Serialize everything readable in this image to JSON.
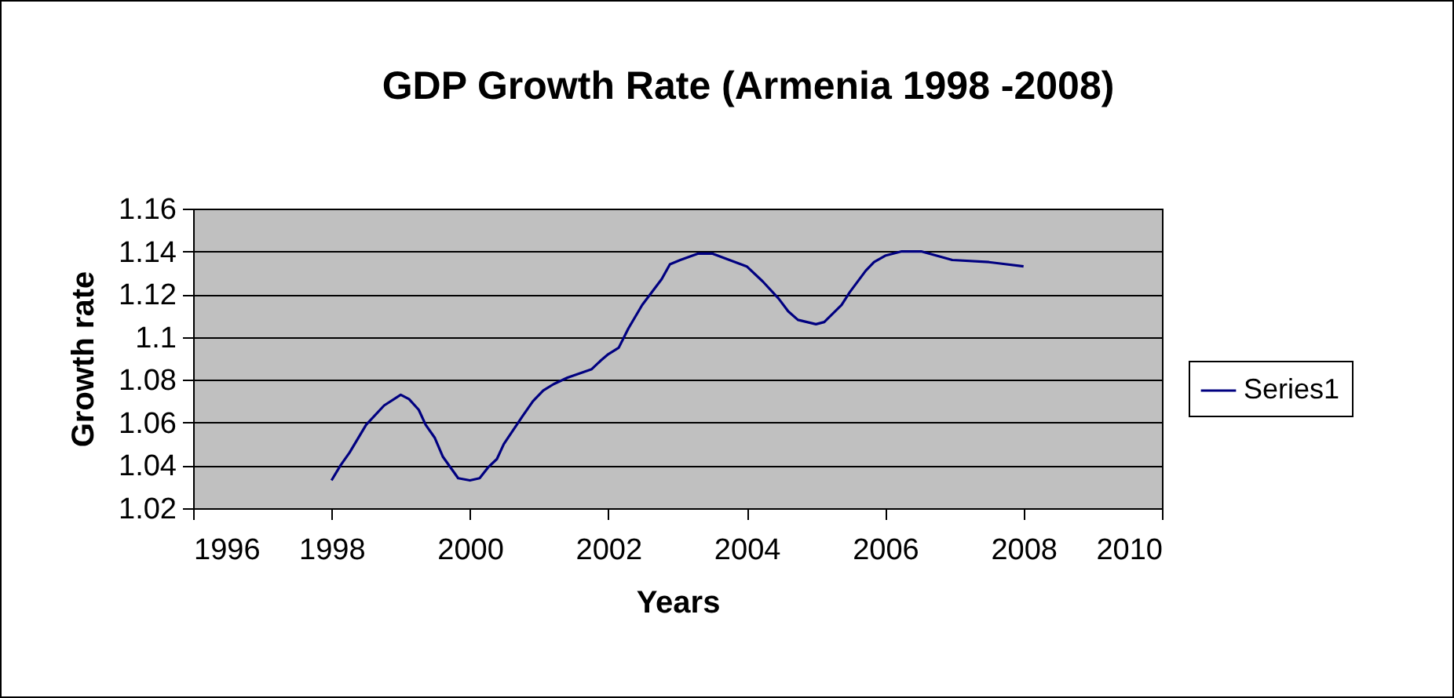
{
  "chart_data": {
    "type": "line",
    "title": "GDP Growth Rate (Armenia 1998 -2008)",
    "xlabel": "Years",
    "ylabel": "Growth rate",
    "xlim": [
      1996,
      2010
    ],
    "xticks": [
      1996,
      1998,
      2000,
      2002,
      2004,
      2006,
      2008,
      2010
    ],
    "ylim": [
      1.02,
      1.16
    ],
    "yticks": [
      1.02,
      1.04,
      1.06,
      1.08,
      1.1,
      1.12,
      1.14,
      1.16
    ],
    "grid": "y",
    "legend": "right",
    "marker": "none",
    "line_style": "solid",
    "series": [
      {
        "name": "Series1",
        "color": "#000080",
        "x": [
          1998,
          1998.13,
          1998.26,
          1998.5,
          1998.76,
          1999,
          1999.12,
          1999.26,
          1999.36,
          1999.49,
          1999.61,
          1999.83,
          2000,
          2000.14,
          2000.26,
          2000.39,
          2000.49,
          2000.76,
          2000.91,
          2001.06,
          2001.21,
          2001.41,
          2001.76,
          2001.89,
          2002,
          2002.15,
          2002.29,
          2002.49,
          2002.77,
          2002.89,
          2003.04,
          2003.3,
          2003.5,
          2003.75,
          2004,
          2004.23,
          2004.46,
          2004.6,
          2004.74,
          2005,
          2005.12,
          2005.37,
          2005.49,
          2005.72,
          2005.84,
          2006,
          2006.24,
          2006.52,
          2006.97,
          2007.5,
          2008
        ],
        "values": [
          1.033,
          1.04,
          1.046,
          1.059,
          1.068,
          1.073,
          1.071,
          1.066,
          1.059,
          1.053,
          1.044,
          1.034,
          1.033,
          1.034,
          1.039,
          1.043,
          1.05,
          1.063,
          1.07,
          1.075,
          1.078,
          1.081,
          1.085,
          1.089,
          1.092,
          1.095,
          1.104,
          1.115,
          1.127,
          1.134,
          1.136,
          1.139,
          1.139,
          1.136,
          1.133,
          1.126,
          1.118,
          1.112,
          1.108,
          1.106,
          1.107,
          1.115,
          1.121,
          1.131,
          1.135,
          1.138,
          1.14,
          1.14,
          1.136,
          1.135,
          1.133
        ]
      }
    ]
  }
}
